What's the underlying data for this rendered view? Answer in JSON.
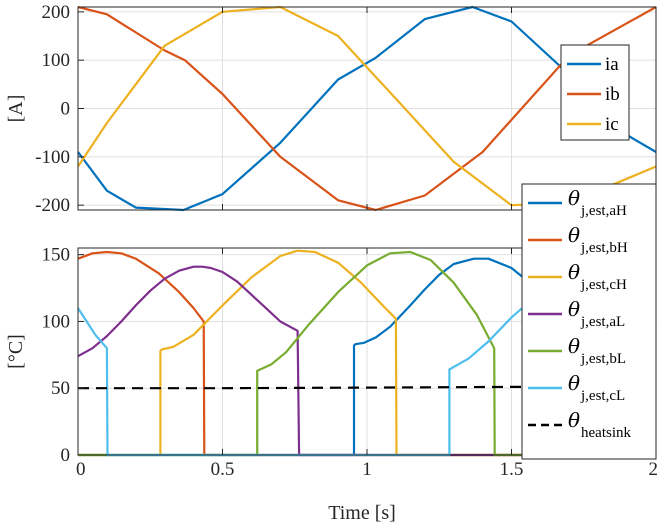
{
  "chart_data": [
    {
      "type": "line",
      "ylabel": "[A]",
      "xlabel": "",
      "xlim": [
        0,
        2
      ],
      "ylim": [
        -210,
        210
      ],
      "xticks": [
        0,
        0.5,
        1,
        1.5,
        2
      ],
      "xtick_labels": [
        "",
        "",
        "",
        "",
        ""
      ],
      "yticks": [
        -200,
        -100,
        0,
        100,
        200
      ],
      "ytick_labels": [
        "-200",
        "-100",
        "0",
        "100",
        "200"
      ],
      "grid": true,
      "legend_position": "right",
      "series": [
        {
          "name": "ia",
          "color": "#0072BD",
          "amplitude": 210,
          "period": 1.33,
          "phase_deg": -90,
          "x": [
            0,
            0.1,
            0.2,
            0.365,
            0.5,
            0.7,
            0.9,
            1.03,
            1.2,
            1.365,
            1.5,
            1.7,
            1.9,
            2.0
          ],
          "y": [
            -90,
            -170,
            -205,
            -210,
            -177,
            -71,
            60,
            105,
            185,
            210,
            180,
            70,
            -55,
            -90
          ]
        },
        {
          "name": "ib",
          "color": "#D95319",
          "amplitude": 210,
          "period": 1.33,
          "phase_deg": 150,
          "x": [
            0,
            0.1,
            0.3,
            0.37,
            0.5,
            0.7,
            0.9,
            1.03,
            1.2,
            1.4,
            1.7,
            2.0
          ],
          "y": [
            210,
            195,
            120,
            100,
            30,
            -100,
            -190,
            -210,
            -180,
            -90,
            110,
            210
          ]
        },
        {
          "name": "ic",
          "color": "#EDB120",
          "amplitude": 210,
          "period": 1.33,
          "phase_deg": 30,
          "x": [
            0,
            0.1,
            0.3,
            0.5,
            0.7,
            0.9,
            1.1,
            1.3,
            1.5,
            1.7,
            2.0
          ],
          "y": [
            -120,
            -30,
            130,
            200,
            210,
            150,
            20,
            -110,
            -200,
            -195,
            -120
          ]
        }
      ]
    },
    {
      "type": "line",
      "ylabel": "[°C]",
      "xlabel": "Time [s]",
      "xlim": [
        0,
        2
      ],
      "ylim": [
        0,
        155
      ],
      "xticks": [
        0,
        0.5,
        1,
        1.5,
        2
      ],
      "xtick_labels": [
        "0",
        "0.5",
        "1",
        "1.5",
        "2"
      ],
      "yticks": [
        0,
        50,
        100,
        150
      ],
      "ytick_labels": [
        "0",
        "50",
        "100",
        "150"
      ],
      "grid": true,
      "legend_position": "right",
      "series": [
        {
          "name_base": "θ",
          "name_sub": "j,est,aH",
          "color": "#0072BD",
          "x": [
            0,
            0.955,
            0.955,
            0.96,
            0.99,
            1.03,
            1.08,
            1.15,
            1.2,
            1.25,
            1.3,
            1.37,
            1.42,
            1.5,
            1.58,
            1.62,
            1.7,
            1.8,
            1.9,
            2.0
          ],
          "y": [
            0,
            0,
            82,
            83,
            84,
            88,
            96,
            112,
            124,
            135,
            143,
            147,
            147,
            140,
            126,
            115,
            90,
            50,
            0,
            0
          ]
        },
        {
          "name_base": "θ",
          "name_sub": "j,est,bH",
          "color": "#D95319",
          "x": [
            0,
            0.05,
            0.1,
            0.15,
            0.2,
            0.28,
            0.35,
            0.4,
            0.435,
            0.437,
            2.0
          ],
          "y": [
            147,
            151,
            152,
            151,
            147,
            136,
            122,
            110,
            100,
            0,
            0
          ]
        },
        {
          "name_base": "θ",
          "name_sub": "j,est,cH",
          "color": "#EDB120",
          "x": [
            0,
            0.285,
            0.285,
            0.29,
            0.33,
            0.4,
            0.5,
            0.6,
            0.7,
            0.76,
            0.82,
            0.9,
            0.98,
            1.05,
            1.1,
            1.102,
            2.0
          ],
          "y": [
            0,
            0,
            78,
            79,
            81,
            90,
            112,
            133,
            149,
            153,
            152,
            144,
            129,
            113,
            102,
            0,
            0
          ]
        },
        {
          "name_base": "θ",
          "name_sub": "j,est,aL",
          "color": "#7E2F8E",
          "x": [
            0,
            0.05,
            0.1,
            0.15,
            0.2,
            0.25,
            0.3,
            0.35,
            0.4,
            0.43,
            0.46,
            0.5,
            0.55,
            0.6,
            0.65,
            0.7,
            0.76,
            0.765,
            2.0
          ],
          "y": [
            74,
            80,
            89,
            100,
            112,
            123,
            132,
            138,
            141,
            141,
            140,
            137,
            130,
            120,
            110,
            100,
            93,
            0,
            0
          ]
        },
        {
          "name_base": "θ",
          "name_sub": "j,est,bL",
          "color": "#77AC30",
          "x": [
            0,
            0.62,
            0.62,
            0.63,
            0.67,
            0.72,
            0.8,
            0.9,
            1.0,
            1.08,
            1.15,
            1.22,
            1.3,
            1.38,
            1.44,
            1.442,
            2.0
          ],
          "y": [
            0,
            0,
            63,
            64,
            68,
            77,
            98,
            122,
            142,
            151,
            152,
            146,
            129,
            105,
            80,
            0,
            0
          ]
        },
        {
          "name_base": "θ",
          "name_sub": "j,est,cL",
          "color": "#4DBEEE",
          "x": [
            0,
            0.03,
            0.06,
            0.1,
            0.102,
            1.285,
            1.285,
            1.3,
            1.35,
            1.42,
            1.5,
            1.6,
            1.7,
            1.8,
            1.9,
            2.0
          ],
          "y": [
            110,
            100,
            90,
            80,
            0,
            0,
            64,
            66,
            72,
            85,
            103,
            122,
            135,
            140,
            120,
            100
          ]
        },
        {
          "name_base": "θ",
          "name_sub": "heatsink",
          "color": "#000000",
          "dashed": true,
          "x": [
            0,
            0.5,
            1.0,
            1.5,
            2.0
          ],
          "y": [
            50,
            50,
            50.5,
            51,
            51
          ]
        }
      ]
    }
  ]
}
